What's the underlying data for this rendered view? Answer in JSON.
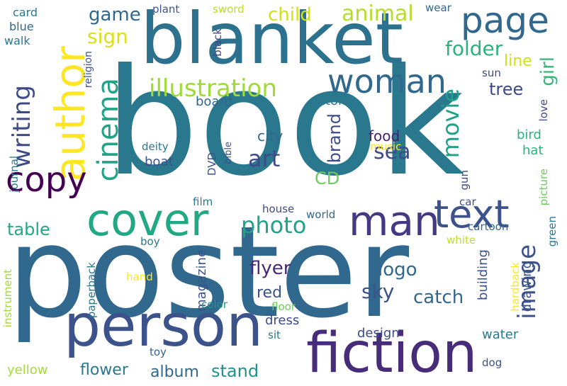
{
  "words": [
    {
      "text": "book",
      "color": "#2a788e"
    },
    {
      "text": "poster",
      "color": "#31688e"
    },
    {
      "text": "blanket",
      "color": "#2c728e"
    },
    {
      "text": "fiction",
      "color": "#472c7a"
    },
    {
      "text": "person",
      "color": "#3b528b"
    },
    {
      "text": "cover",
      "color": "#22a884"
    },
    {
      "text": "author",
      "color": "#fde725"
    },
    {
      "text": "man",
      "color": "#443983"
    },
    {
      "text": "text",
      "color": "#3b528b"
    },
    {
      "text": "page",
      "color": "#31688e"
    },
    {
      "text": "copy",
      "color": "#440154"
    },
    {
      "text": "woman",
      "color": "#31688e"
    },
    {
      "text": "cinema",
      "color": "#20a386"
    },
    {
      "text": "writing",
      "color": "#3e4a89"
    },
    {
      "text": "illustration",
      "color": "#a0da39"
    },
    {
      "text": "image",
      "color": "#3b528b"
    },
    {
      "text": "movie",
      "color": "#1fa187"
    },
    {
      "text": "animal",
      "color": "#b5de2b"
    },
    {
      "text": "child",
      "color": "#d0e11c"
    },
    {
      "text": "art",
      "color": "#3e4a89"
    },
    {
      "text": "photo",
      "color": "#20a386"
    },
    {
      "text": "folder",
      "color": "#2db27d"
    },
    {
      "text": "sign",
      "color": "#d8e219"
    },
    {
      "text": "game",
      "color": "#31688e"
    },
    {
      "text": "girl",
      "color": "#35b779"
    },
    {
      "text": "sea",
      "color": "#3e4a89"
    },
    {
      "text": "brand",
      "color": "#3e4a89"
    },
    {
      "text": "sky",
      "color": "#3b528b"
    },
    {
      "text": "catch",
      "color": "#31688e"
    },
    {
      "text": "logo",
      "color": "#31688e"
    },
    {
      "text": "flyer",
      "color": "#482878"
    },
    {
      "text": "table",
      "color": "#22a884"
    },
    {
      "text": "tree",
      "color": "#3e4a89"
    },
    {
      "text": "CD",
      "color": "#6ccd5a"
    },
    {
      "text": "red",
      "color": "#3b528b"
    },
    {
      "text": "stand",
      "color": "#21918c"
    },
    {
      "text": "album",
      "color": "#31688e"
    },
    {
      "text": "flower",
      "color": "#2a788e"
    },
    {
      "text": "line",
      "color": "#cde11d"
    },
    {
      "text": "city",
      "color": "#31688e"
    },
    {
      "text": "food",
      "color": "#482173"
    },
    {
      "text": "magazine",
      "color": "#3b528b"
    },
    {
      "text": "dress",
      "color": "#3e4a89"
    },
    {
      "text": "design",
      "color": "#3e4a89"
    },
    {
      "text": "building",
      "color": "#3b528b"
    },
    {
      "text": "drawing",
      "color": "#3b528b"
    },
    {
      "text": "water",
      "color": "#2a788e"
    },
    {
      "text": "yellow",
      "color": "#a5db36"
    },
    {
      "text": "bird",
      "color": "#2db27d"
    },
    {
      "text": "hat",
      "color": "#2db27d"
    },
    {
      "text": "boat",
      "color": "#3b528b"
    },
    {
      "text": "board",
      "color": "#31688e"
    },
    {
      "text": "actor",
      "color": "#2a788e"
    },
    {
      "text": "card",
      "color": "#2a788e"
    },
    {
      "text": "blue",
      "color": "#31688e"
    },
    {
      "text": "walk",
      "color": "#2a788e"
    },
    {
      "text": "plant",
      "color": "#3b528b"
    },
    {
      "text": "sword",
      "color": "#b8de29"
    },
    {
      "text": "wear",
      "color": "#31688e"
    },
    {
      "text": "black",
      "color": "#414487"
    },
    {
      "text": "religion",
      "color": "#3b528b"
    },
    {
      "text": "sun",
      "color": "#3e4a89"
    },
    {
      "text": "journal",
      "color": "#2a788e"
    },
    {
      "text": "deity",
      "color": "#2a788e"
    },
    {
      "text": "DVD",
      "color": "#3b528b"
    },
    {
      "text": "bible",
      "color": "#3b528b"
    },
    {
      "text": "music",
      "color": "#fde725"
    },
    {
      "text": "film",
      "color": "#2a788e"
    },
    {
      "text": "house",
      "color": "#3e4a89"
    },
    {
      "text": "world",
      "color": "#31688e"
    },
    {
      "text": "car",
      "color": "#3b528b"
    },
    {
      "text": "boy",
      "color": "#2a788e"
    },
    {
      "text": "white",
      "color": "#bddf26"
    },
    {
      "text": "cartoon",
      "color": "#31688e"
    },
    {
      "text": "gun",
      "color": "#3e4a89"
    },
    {
      "text": "love",
      "color": "#3e4a89"
    },
    {
      "text": "picture",
      "color": "#6ccd5a"
    },
    {
      "text": "green",
      "color": "#2a788e"
    },
    {
      "text": "hand",
      "color": "#fde725"
    },
    {
      "text": "paperback",
      "color": "#2a788e"
    },
    {
      "text": "hardback",
      "color": "#fde725"
    },
    {
      "text": "instrument",
      "color": "#a0da39"
    },
    {
      "text": "color",
      "color": "#21918c"
    },
    {
      "text": "floor",
      "color": "#6ccd5a"
    },
    {
      "text": "sit",
      "color": "#2a788e"
    },
    {
      "text": "toy",
      "color": "#31688e"
    },
    {
      "text": "dog",
      "color": "#3b528b"
    }
  ]
}
